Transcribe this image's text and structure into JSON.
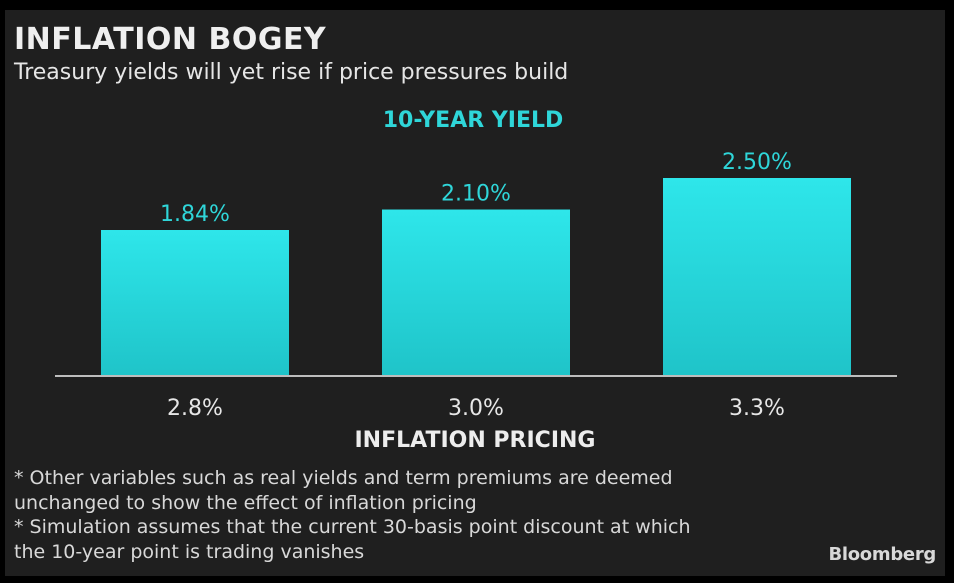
{
  "header": {
    "title": "INFLATION BOGEY",
    "subtitle": "Treasury yields will yet rise if price pressures build"
  },
  "chart_data": {
    "type": "bar",
    "title": "10-YEAR YIELD",
    "xlabel": "INFLATION PRICING",
    "ylabel": "",
    "categories": [
      "2.8%",
      "3.0%",
      "3.3%"
    ],
    "values": [
      1.84,
      2.1,
      2.5
    ],
    "data_labels": [
      "1.84%",
      "2.10%",
      "2.50%"
    ],
    "ylim": [
      0,
      2.5
    ],
    "grid": false,
    "legend": "none",
    "colors": {
      "bar_top": "#2ee6ea",
      "bar_bottom": "#1fc4c9",
      "accent_text": "#2fd6d9",
      "axis": "#bdbdbd",
      "tick_text": "#e6e6e6"
    }
  },
  "notes": [
    "* Other variables such as real yields and term premiums are deemed",
    "unchanged to show the effect of inflation pricing",
    "* Simulation assumes that the current 30-basis point discount at which",
    "the 10-year point is trading vanishes"
  ],
  "brand": "Bloomberg"
}
